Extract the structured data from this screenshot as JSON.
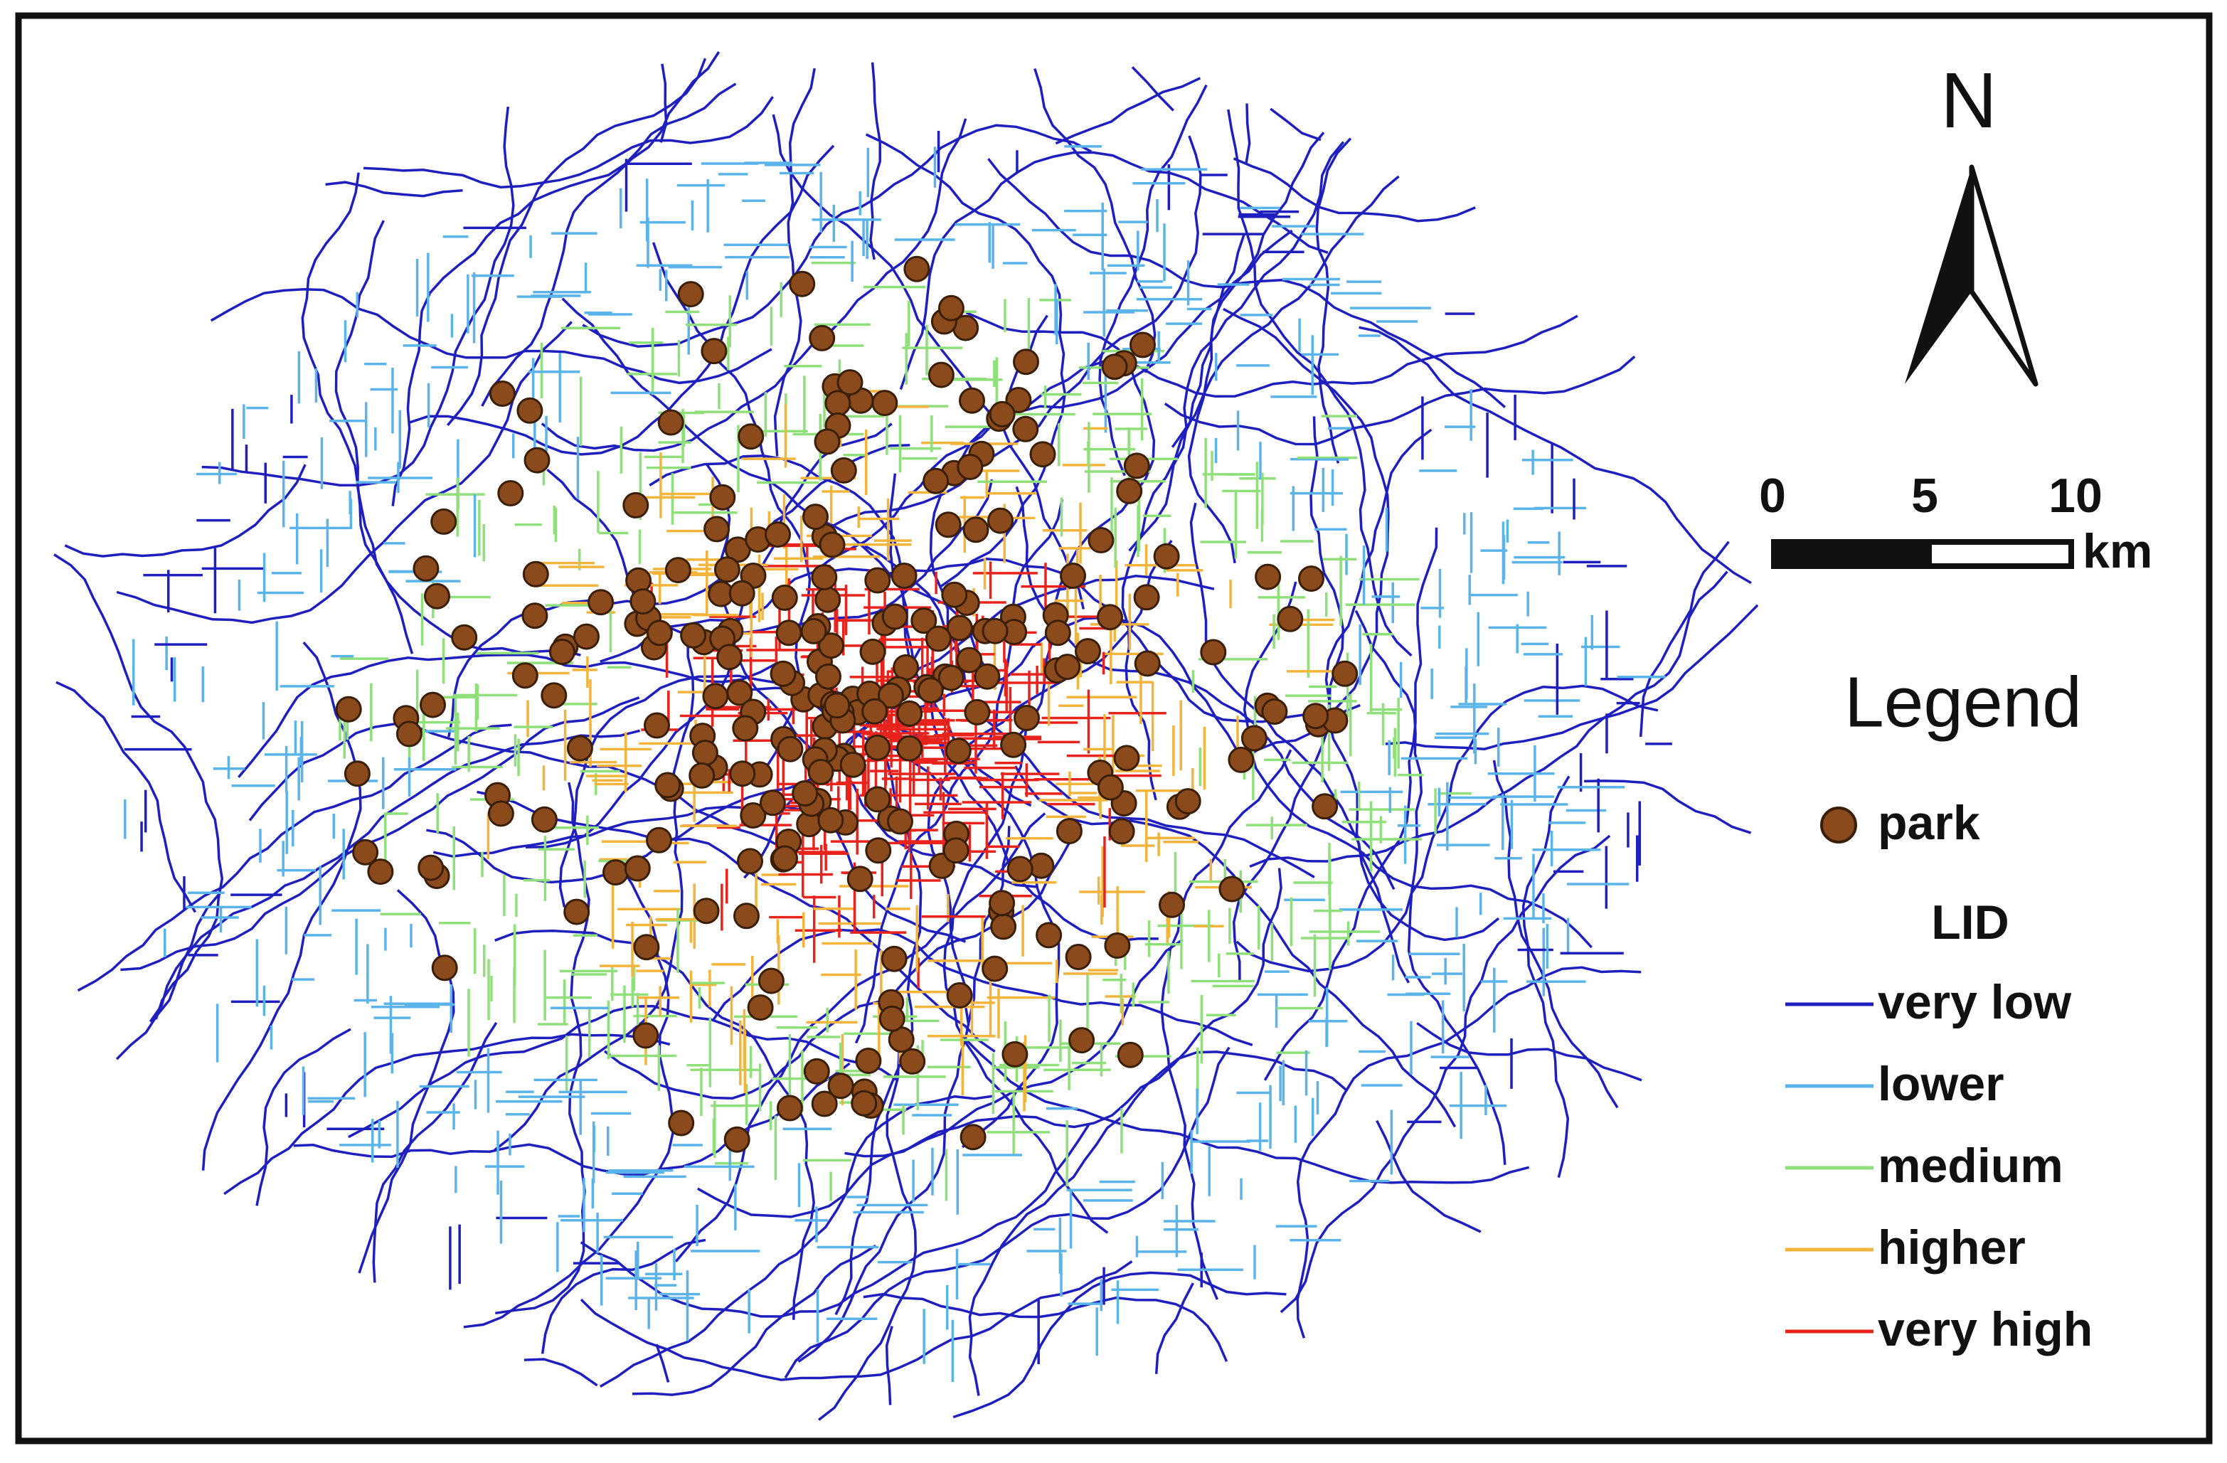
{
  "north_label": "N",
  "scale_bar": {
    "labels": [
      0,
      5,
      10
    ],
    "unit": "km"
  },
  "legend": {
    "title": "Legend",
    "park": {
      "label": "park",
      "color": "#8b4a1c"
    },
    "lid": {
      "title": "LID",
      "items": [
        {
          "label": "very low",
          "color": "#1f1fbf"
        },
        {
          "label": "lower",
          "color": "#5ab4ea"
        },
        {
          "label": "medium",
          "color": "#8fe07a"
        },
        {
          "label": "higher",
          "color": "#f2b43a"
        },
        {
          "label": "very high",
          "color": "#e8231c"
        }
      ]
    }
  }
}
